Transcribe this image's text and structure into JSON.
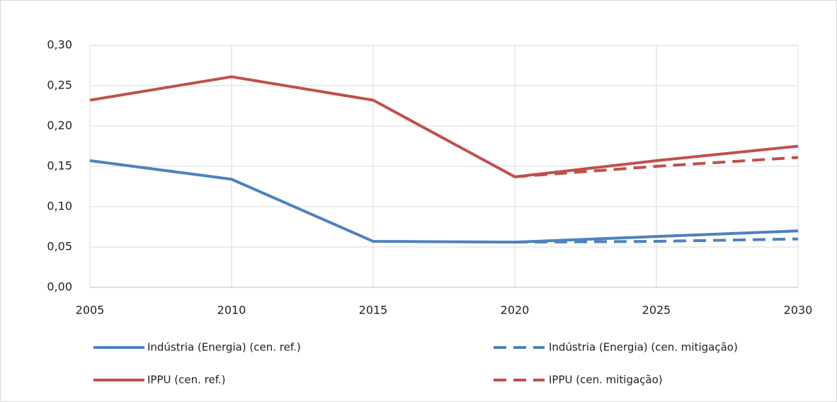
{
  "chart_data": {
    "type": "line",
    "x": [
      2005,
      2010,
      2015,
      2020,
      2025,
      2030
    ],
    "series": [
      {
        "name": "Indústria (Energia) (cen. ref.)",
        "color": "#4f81bd",
        "dash": false,
        "values": [
          0.157,
          0.134,
          0.057,
          0.056,
          0.063,
          0.07
        ]
      },
      {
        "name": "Indústria (Energia) (cen. mitigação)",
        "color": "#4f81bd",
        "dash": true,
        "values": [
          null,
          null,
          null,
          0.056,
          0.057,
          0.06
        ]
      },
      {
        "name": "IPPU (cen. ref.)",
        "color": "#c0504d",
        "dash": false,
        "values": [
          0.232,
          0.261,
          0.232,
          0.137,
          0.157,
          0.175
        ]
      },
      {
        "name": "IPPU (cen. mitigação)",
        "color": "#c0504d",
        "dash": true,
        "values": [
          null,
          null,
          null,
          0.137,
          0.15,
          0.161
        ]
      }
    ],
    "xlim": [
      2005,
      2030
    ],
    "xticks": [
      2005,
      2010,
      2015,
      2020,
      2025,
      2030
    ],
    "ylim": [
      0,
      0.3
    ],
    "yticks": [
      {
        "value": 0,
        "label": "0,00"
      },
      {
        "value": 0.05,
        "label": "0,05"
      },
      {
        "value": 0.1,
        "label": "0,10"
      },
      {
        "value": 0.15,
        "label": "0,15"
      },
      {
        "value": 0.2,
        "label": "0,20"
      },
      {
        "value": 0.25,
        "label": "0,25"
      },
      {
        "value": 0.3,
        "label": "0,30"
      }
    ],
    "grid": true,
    "legend": "bottom"
  }
}
